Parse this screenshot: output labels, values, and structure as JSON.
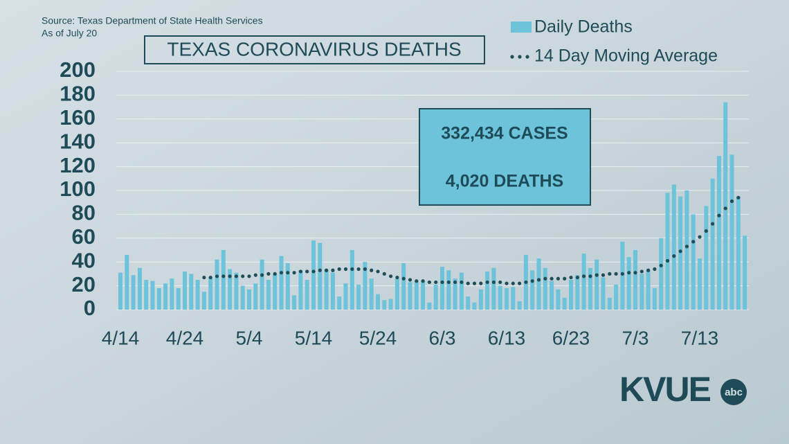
{
  "chart_data": {
    "type": "bar",
    "title": "TEXAS CORONAVIRUS DEATHS",
    "subtitle": [
      "Source: Texas Department of State Health Services",
      "As of July 20"
    ],
    "annotations": [
      "332,434 CASES",
      "4,020 DEATHS"
    ],
    "logo": [
      "KVUE",
      "abc"
    ],
    "categories": [
      "4/14",
      null,
      null,
      null,
      null,
      null,
      null,
      null,
      null,
      null,
      "4/24",
      null,
      null,
      null,
      null,
      null,
      null,
      null,
      null,
      null,
      "5/4",
      null,
      null,
      null,
      null,
      null,
      null,
      null,
      null,
      null,
      "5/14",
      null,
      null,
      null,
      null,
      null,
      null,
      null,
      null,
      null,
      "5/24",
      null,
      null,
      null,
      null,
      null,
      null,
      null,
      null,
      null,
      "6/3",
      null,
      null,
      null,
      null,
      null,
      null,
      null,
      null,
      null,
      "6/13",
      null,
      null,
      null,
      null,
      null,
      null,
      null,
      null,
      null,
      "6/23",
      null,
      null,
      null,
      null,
      null,
      null,
      null,
      null,
      null,
      "7/3",
      null,
      null,
      null,
      null,
      null,
      null,
      null,
      null,
      null,
      "7/13",
      null,
      null,
      null,
      null,
      null,
      null,
      null
    ],
    "series": [
      {
        "name": "Daily Deaths",
        "type": "bar",
        "color": "#6cc3da",
        "values": [
          31,
          46,
          29,
          35,
          25,
          24,
          18,
          22,
          26,
          18,
          32,
          30,
          25,
          15,
          27,
          42,
          50,
          34,
          31,
          20,
          17,
          22,
          42,
          25,
          30,
          45,
          39,
          12,
          33,
          25,
          58,
          56,
          34,
          31,
          11,
          22,
          50,
          21,
          40,
          26,
          13,
          8,
          9,
          26,
          39,
          23,
          24,
          24,
          6,
          21,
          36,
          33,
          26,
          31,
          11,
          6,
          17,
          32,
          35,
          20,
          18,
          19,
          7,
          46,
          33,
          43,
          35,
          24,
          17,
          10,
          25,
          29,
          47,
          35,
          42,
          27,
          10,
          21,
          57,
          44,
          50,
          30,
          33,
          18,
          60,
          98,
          105,
          95,
          100,
          80,
          43,
          87,
          110,
          129,
          174,
          130,
          95,
          62
        ]
      },
      {
        "name": "14 Day Moving Average",
        "type": "dots",
        "color": "#1f4e59",
        "values": [
          null,
          null,
          null,
          null,
          null,
          null,
          null,
          null,
          null,
          null,
          null,
          null,
          null,
          27,
          27,
          28,
          28,
          28,
          28,
          28,
          28,
          29,
          29,
          30,
          30,
          31,
          31,
          31,
          32,
          32,
          32,
          33,
          33,
          33,
          34,
          34,
          34,
          34,
          34,
          33,
          32,
          30,
          28,
          27,
          26,
          25,
          24,
          24,
          23,
          23,
          23,
          23,
          23,
          23,
          22,
          22,
          22,
          23,
          23,
          23,
          22,
          22,
          22,
          23,
          24,
          25,
          26,
          26,
          26,
          26,
          27,
          27,
          28,
          28,
          29,
          29,
          30,
          30,
          30,
          31,
          31,
          32,
          33,
          34,
          37,
          41,
          45,
          49,
          53,
          57,
          61,
          66,
          72,
          79,
          85,
          91,
          94,
          null
        ]
      }
    ],
    "ylim": [
      0,
      200
    ],
    "yticks": [
      0,
      20,
      40,
      60,
      80,
      100,
      120,
      140,
      160,
      180,
      200
    ],
    "grid": true
  }
}
